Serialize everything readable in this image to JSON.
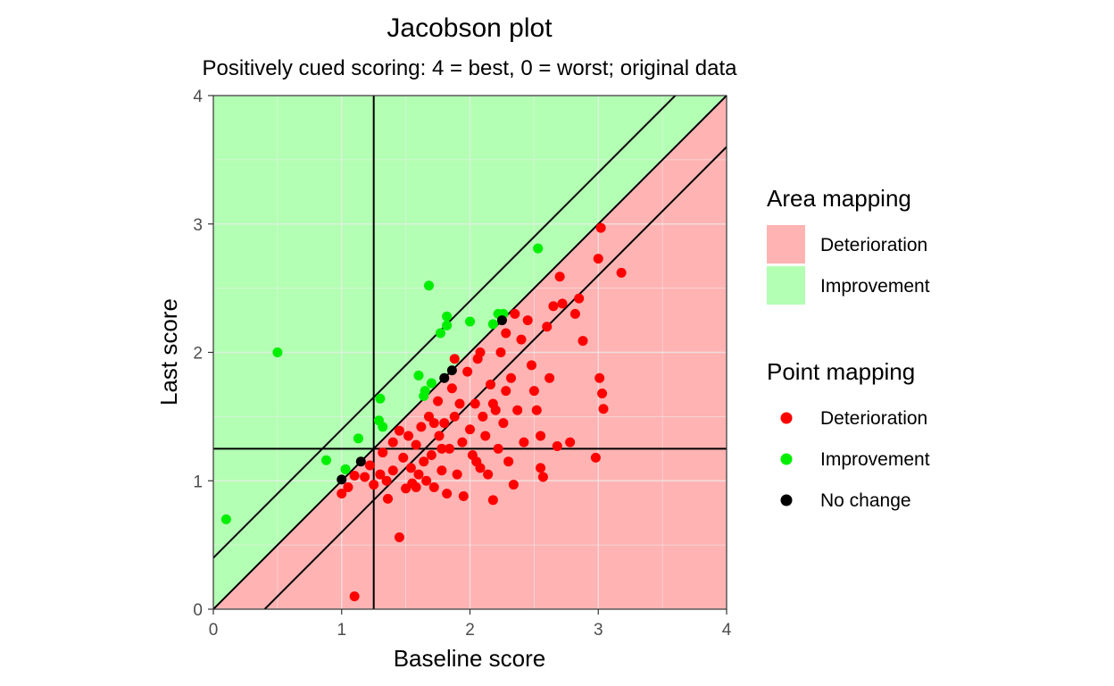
{
  "chart_data": {
    "type": "scatter",
    "title": "Jacobson plot",
    "subtitle": "Positively cued scoring: 4 = best, 0 = worst; original data",
    "xlabel": "Baseline score",
    "ylabel": "Last score",
    "xlim": [
      0,
      4
    ],
    "ylim": [
      0,
      4
    ],
    "xticks": [
      "0",
      "1",
      "2",
      "3",
      "4"
    ],
    "yticks": [
      "0",
      "1",
      "2",
      "3",
      "4"
    ],
    "grid": true,
    "reference_lines": {
      "cutoff": 1.25,
      "rci_offset": 0.4
    },
    "area_colors": {
      "Deterioration": "#ffb3b3",
      "Improvement": "#b3ffb3"
    },
    "point_colors": {
      "Deterioration": "#ff0000",
      "Improvement": "#00ee00",
      "No change": "#000000"
    },
    "legend": {
      "area_title": "Area mapping",
      "area_items": [
        "Deterioration",
        "Improvement"
      ],
      "point_title": "Point mapping",
      "point_items": [
        "Deterioration",
        "Improvement",
        "No change"
      ]
    },
    "series": [
      {
        "name": "Improvement",
        "points": [
          [
            0.1,
            0.7
          ],
          [
            0.5,
            2.0
          ],
          [
            0.88,
            1.16
          ],
          [
            1.03,
            1.09
          ],
          [
            1.13,
            1.33
          ],
          [
            1.29,
            1.47
          ],
          [
            1.3,
            1.64
          ],
          [
            1.32,
            1.42
          ],
          [
            1.6,
            1.82
          ],
          [
            1.64,
            1.66
          ],
          [
            1.65,
            1.7
          ],
          [
            1.68,
            2.52
          ],
          [
            1.7,
            1.76
          ],
          [
            1.77,
            2.15
          ],
          [
            1.82,
            2.21
          ],
          [
            1.82,
            2.28
          ],
          [
            2.0,
            2.24
          ],
          [
            2.18,
            2.22
          ],
          [
            2.22,
            2.3
          ],
          [
            2.26,
            2.3
          ],
          [
            2.53,
            2.81
          ]
        ]
      },
      {
        "name": "No change",
        "points": [
          [
            1.0,
            1.01
          ],
          [
            1.15,
            1.15
          ],
          [
            1.8,
            1.8
          ],
          [
            1.86,
            1.86
          ],
          [
            2.25,
            2.25
          ]
        ]
      },
      {
        "name": "Deterioration",
        "points": [
          [
            1.0,
            0.9
          ],
          [
            1.05,
            0.95
          ],
          [
            1.1,
            0.1
          ],
          [
            1.1,
            1.04
          ],
          [
            1.18,
            1.03
          ],
          [
            1.22,
            1.12
          ],
          [
            1.25,
            0.97
          ],
          [
            1.32,
            1.22
          ],
          [
            1.35,
            1.0
          ],
          [
            1.36,
            0.86
          ],
          [
            1.4,
            1.08
          ],
          [
            1.45,
            0.56
          ],
          [
            1.45,
            1.39
          ],
          [
            1.48,
            1.18
          ],
          [
            1.5,
            0.94
          ],
          [
            1.52,
            1.35
          ],
          [
            1.54,
            1.1
          ],
          [
            1.55,
            0.98
          ],
          [
            1.58,
            1.28
          ],
          [
            1.6,
            1.05
          ],
          [
            1.62,
            1.42
          ],
          [
            1.64,
            1.15
          ],
          [
            1.66,
            1.0
          ],
          [
            1.68,
            1.5
          ],
          [
            1.7,
            1.2
          ],
          [
            1.72,
            0.95
          ],
          [
            1.75,
            1.62
          ],
          [
            1.76,
            1.35
          ],
          [
            1.78,
            1.08
          ],
          [
            1.8,
            1.45
          ],
          [
            1.82,
            0.9
          ],
          [
            1.84,
            1.25
          ],
          [
            1.86,
            1.72
          ],
          [
            1.88,
            1.5
          ],
          [
            1.9,
            1.05
          ],
          [
            1.92,
            1.6
          ],
          [
            1.94,
            1.3
          ],
          [
            1.95,
            0.88
          ],
          [
            1.98,
            1.85
          ],
          [
            2.0,
            1.4
          ],
          [
            2.02,
            1.2
          ],
          [
            2.04,
            1.6
          ],
          [
            2.06,
            1.95
          ],
          [
            2.08,
            1.1
          ],
          [
            2.1,
            1.5
          ],
          [
            2.12,
            1.35
          ],
          [
            2.14,
            1.05
          ],
          [
            2.16,
            1.75
          ],
          [
            2.18,
            0.85
          ],
          [
            2.2,
            1.55
          ],
          [
            2.22,
            1.25
          ],
          [
            2.24,
            2.0
          ],
          [
            2.26,
            1.45
          ],
          [
            2.28,
            2.15
          ],
          [
            2.3,
            1.15
          ],
          [
            2.32,
            1.8
          ],
          [
            2.34,
            0.97
          ],
          [
            2.35,
            2.3
          ],
          [
            2.37,
            1.55
          ],
          [
            2.4,
            2.1
          ],
          [
            2.42,
            1.3
          ],
          [
            2.45,
            2.25
          ],
          [
            2.48,
            1.9
          ],
          [
            2.5,
            1.7
          ],
          [
            2.52,
            1.55
          ],
          [
            2.55,
            1.35
          ],
          [
            2.57,
            1.03
          ],
          [
            2.6,
            2.2
          ],
          [
            2.62,
            1.8
          ],
          [
            2.65,
            2.36
          ],
          [
            2.68,
            1.27
          ],
          [
            2.7,
            2.59
          ],
          [
            2.72,
            2.38
          ],
          [
            2.78,
            1.3
          ],
          [
            2.82,
            2.3
          ],
          [
            2.85,
            2.42
          ],
          [
            2.88,
            2.09
          ],
          [
            2.98,
            1.18
          ],
          [
            3.0,
            2.73
          ],
          [
            3.01,
            1.8
          ],
          [
            3.02,
            2.97
          ],
          [
            3.03,
            1.68
          ],
          [
            3.04,
            1.56
          ],
          [
            3.18,
            2.62
          ],
          [
            2.18,
            1.6
          ],
          [
            1.72,
            1.45
          ],
          [
            1.58,
            0.95
          ],
          [
            2.05,
            1.15
          ],
          [
            2.28,
            1.7
          ],
          [
            1.88,
            1.95
          ],
          [
            2.08,
            2.0
          ],
          [
            1.78,
            1.25
          ],
          [
            1.4,
            1.3
          ],
          [
            1.3,
            1.05
          ],
          [
            2.55,
            1.1
          ]
        ]
      }
    ]
  }
}
